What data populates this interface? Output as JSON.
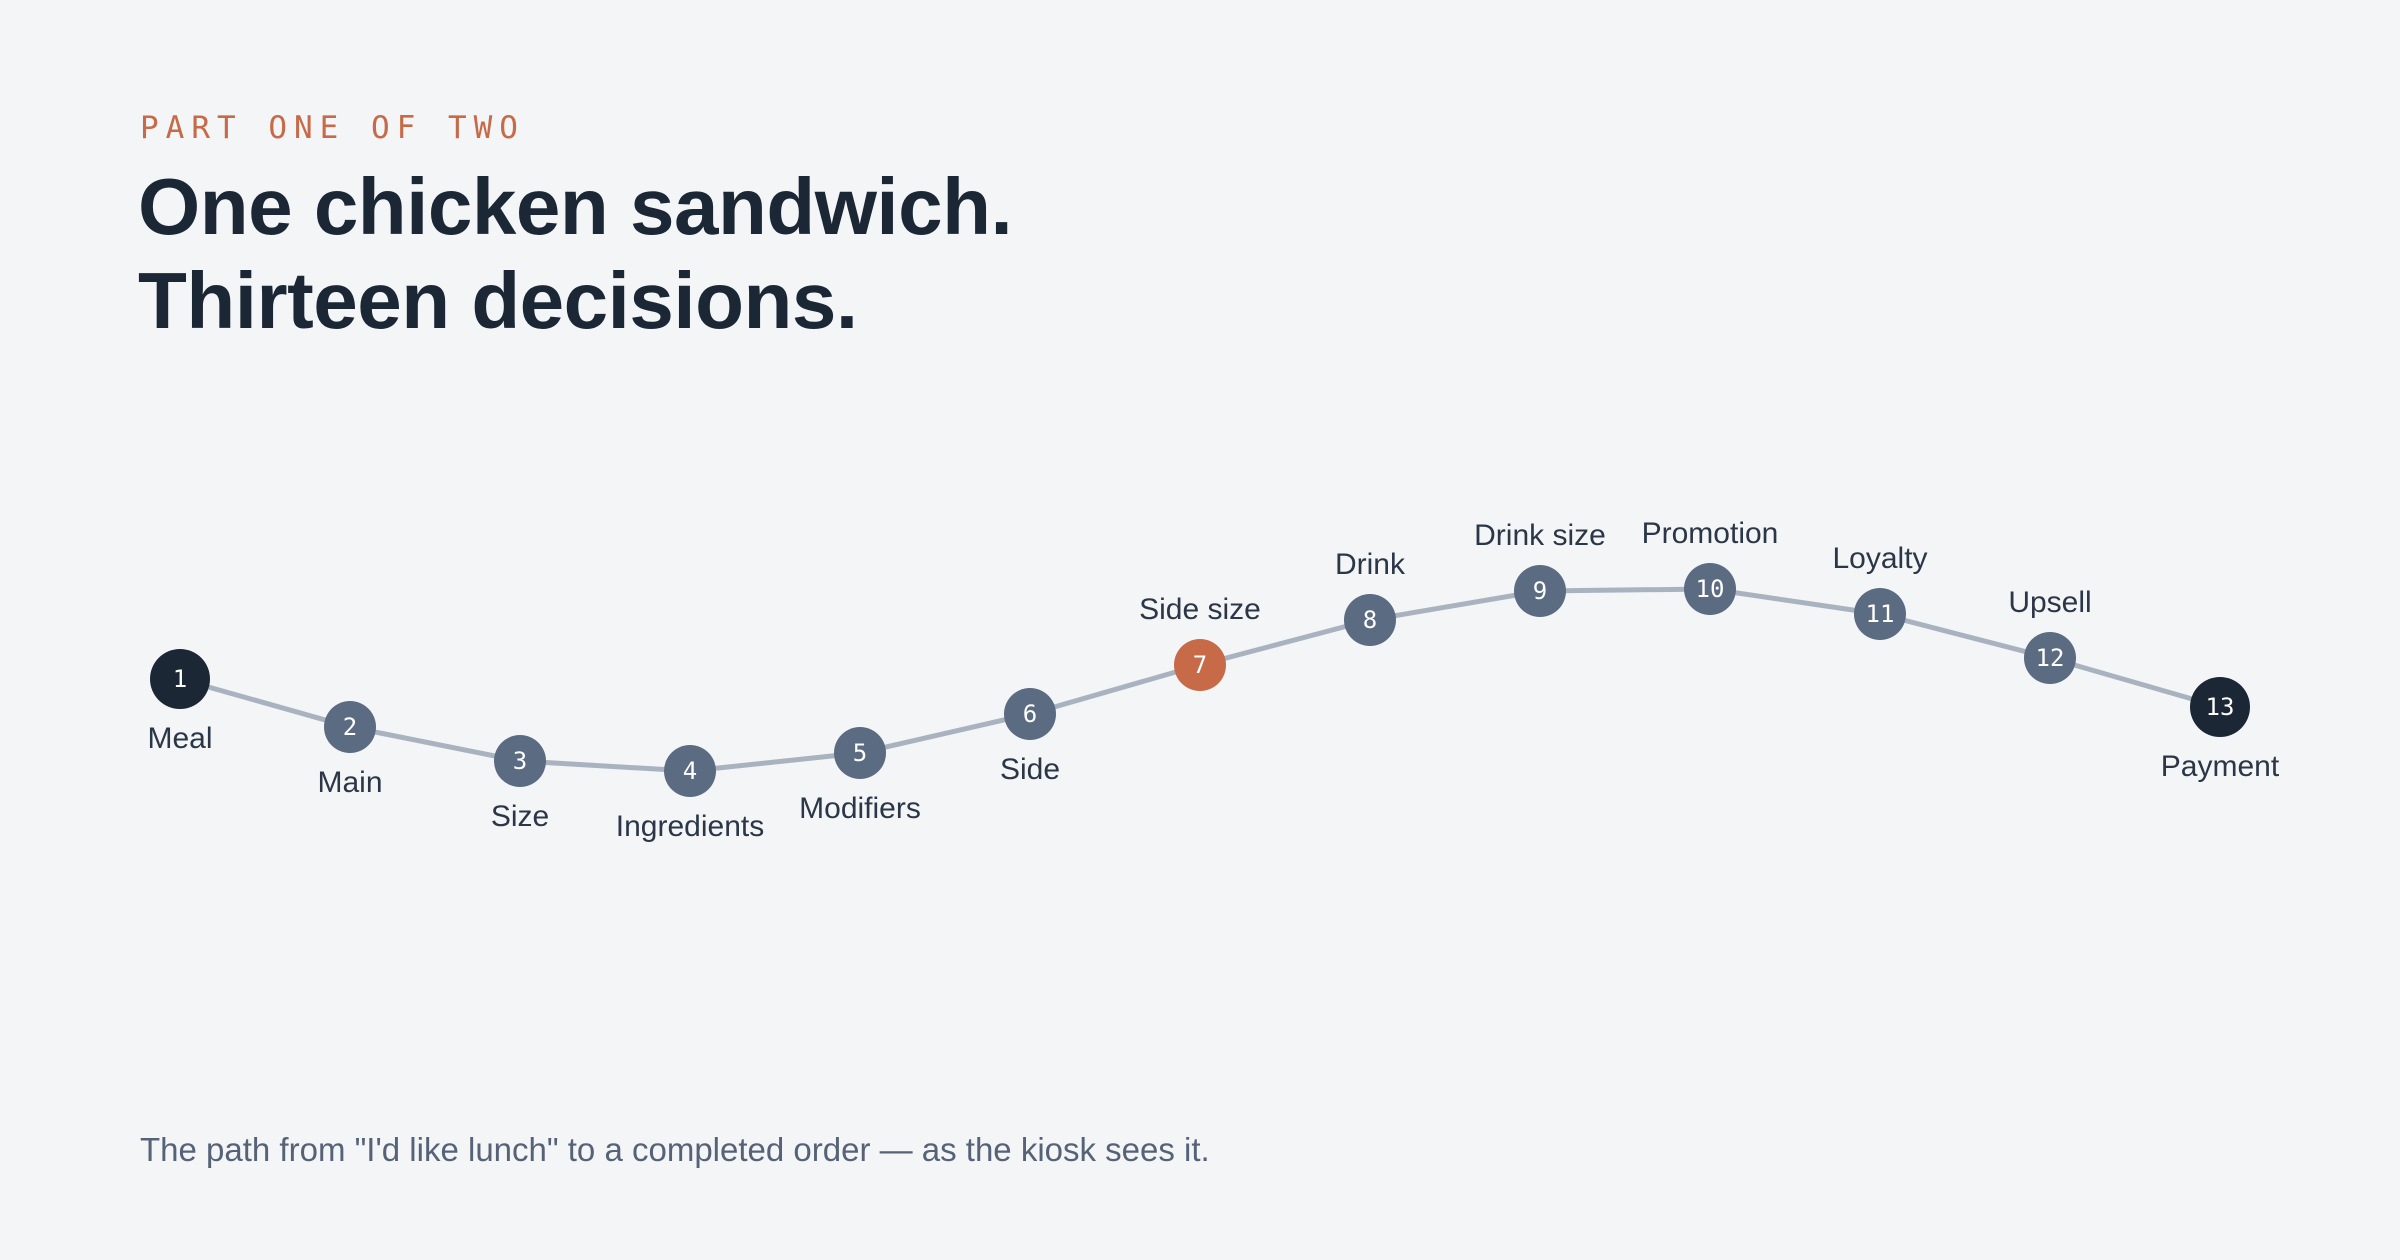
{
  "header": {
    "eyebrow": "PART ONE OF TWO",
    "headline_line1": "One chicken sandwich.",
    "headline_line2": "Thirteen decisions."
  },
  "caption": "The path from \"I'd like lunch\" to a completed order — as the kiosk sees it.",
  "colors": {
    "background": "#f3f5f7",
    "path_line": "#a9b3c0",
    "node_default": "#5a6b82",
    "node_endpoint": "#1b2735",
    "node_highlight": "#c76a48",
    "eyebrow": "#c76a48",
    "headline": "#1b2735",
    "label": "#2b3646"
  },
  "steps": [
    {
      "number": "1",
      "label": "Meal",
      "kind": "endpoint"
    },
    {
      "number": "2",
      "label": "Main",
      "kind": "default"
    },
    {
      "number": "3",
      "label": "Size",
      "kind": "default"
    },
    {
      "number": "4",
      "label": "Ingredients",
      "kind": "default"
    },
    {
      "number": "5",
      "label": "Modifiers",
      "kind": "default"
    },
    {
      "number": "6",
      "label": "Side",
      "kind": "default"
    },
    {
      "number": "7",
      "label": "Side size",
      "kind": "highlight"
    },
    {
      "number": "8",
      "label": "Drink",
      "kind": "default"
    },
    {
      "number": "9",
      "label": "Drink size",
      "kind": "default"
    },
    {
      "number": "10",
      "label": "Promotion",
      "kind": "default"
    },
    {
      "number": "11",
      "label": "Loyalty",
      "kind": "default"
    },
    {
      "number": "12",
      "label": "Upsell",
      "kind": "default"
    },
    {
      "number": "13",
      "label": "Payment",
      "kind": "endpoint"
    }
  ]
}
